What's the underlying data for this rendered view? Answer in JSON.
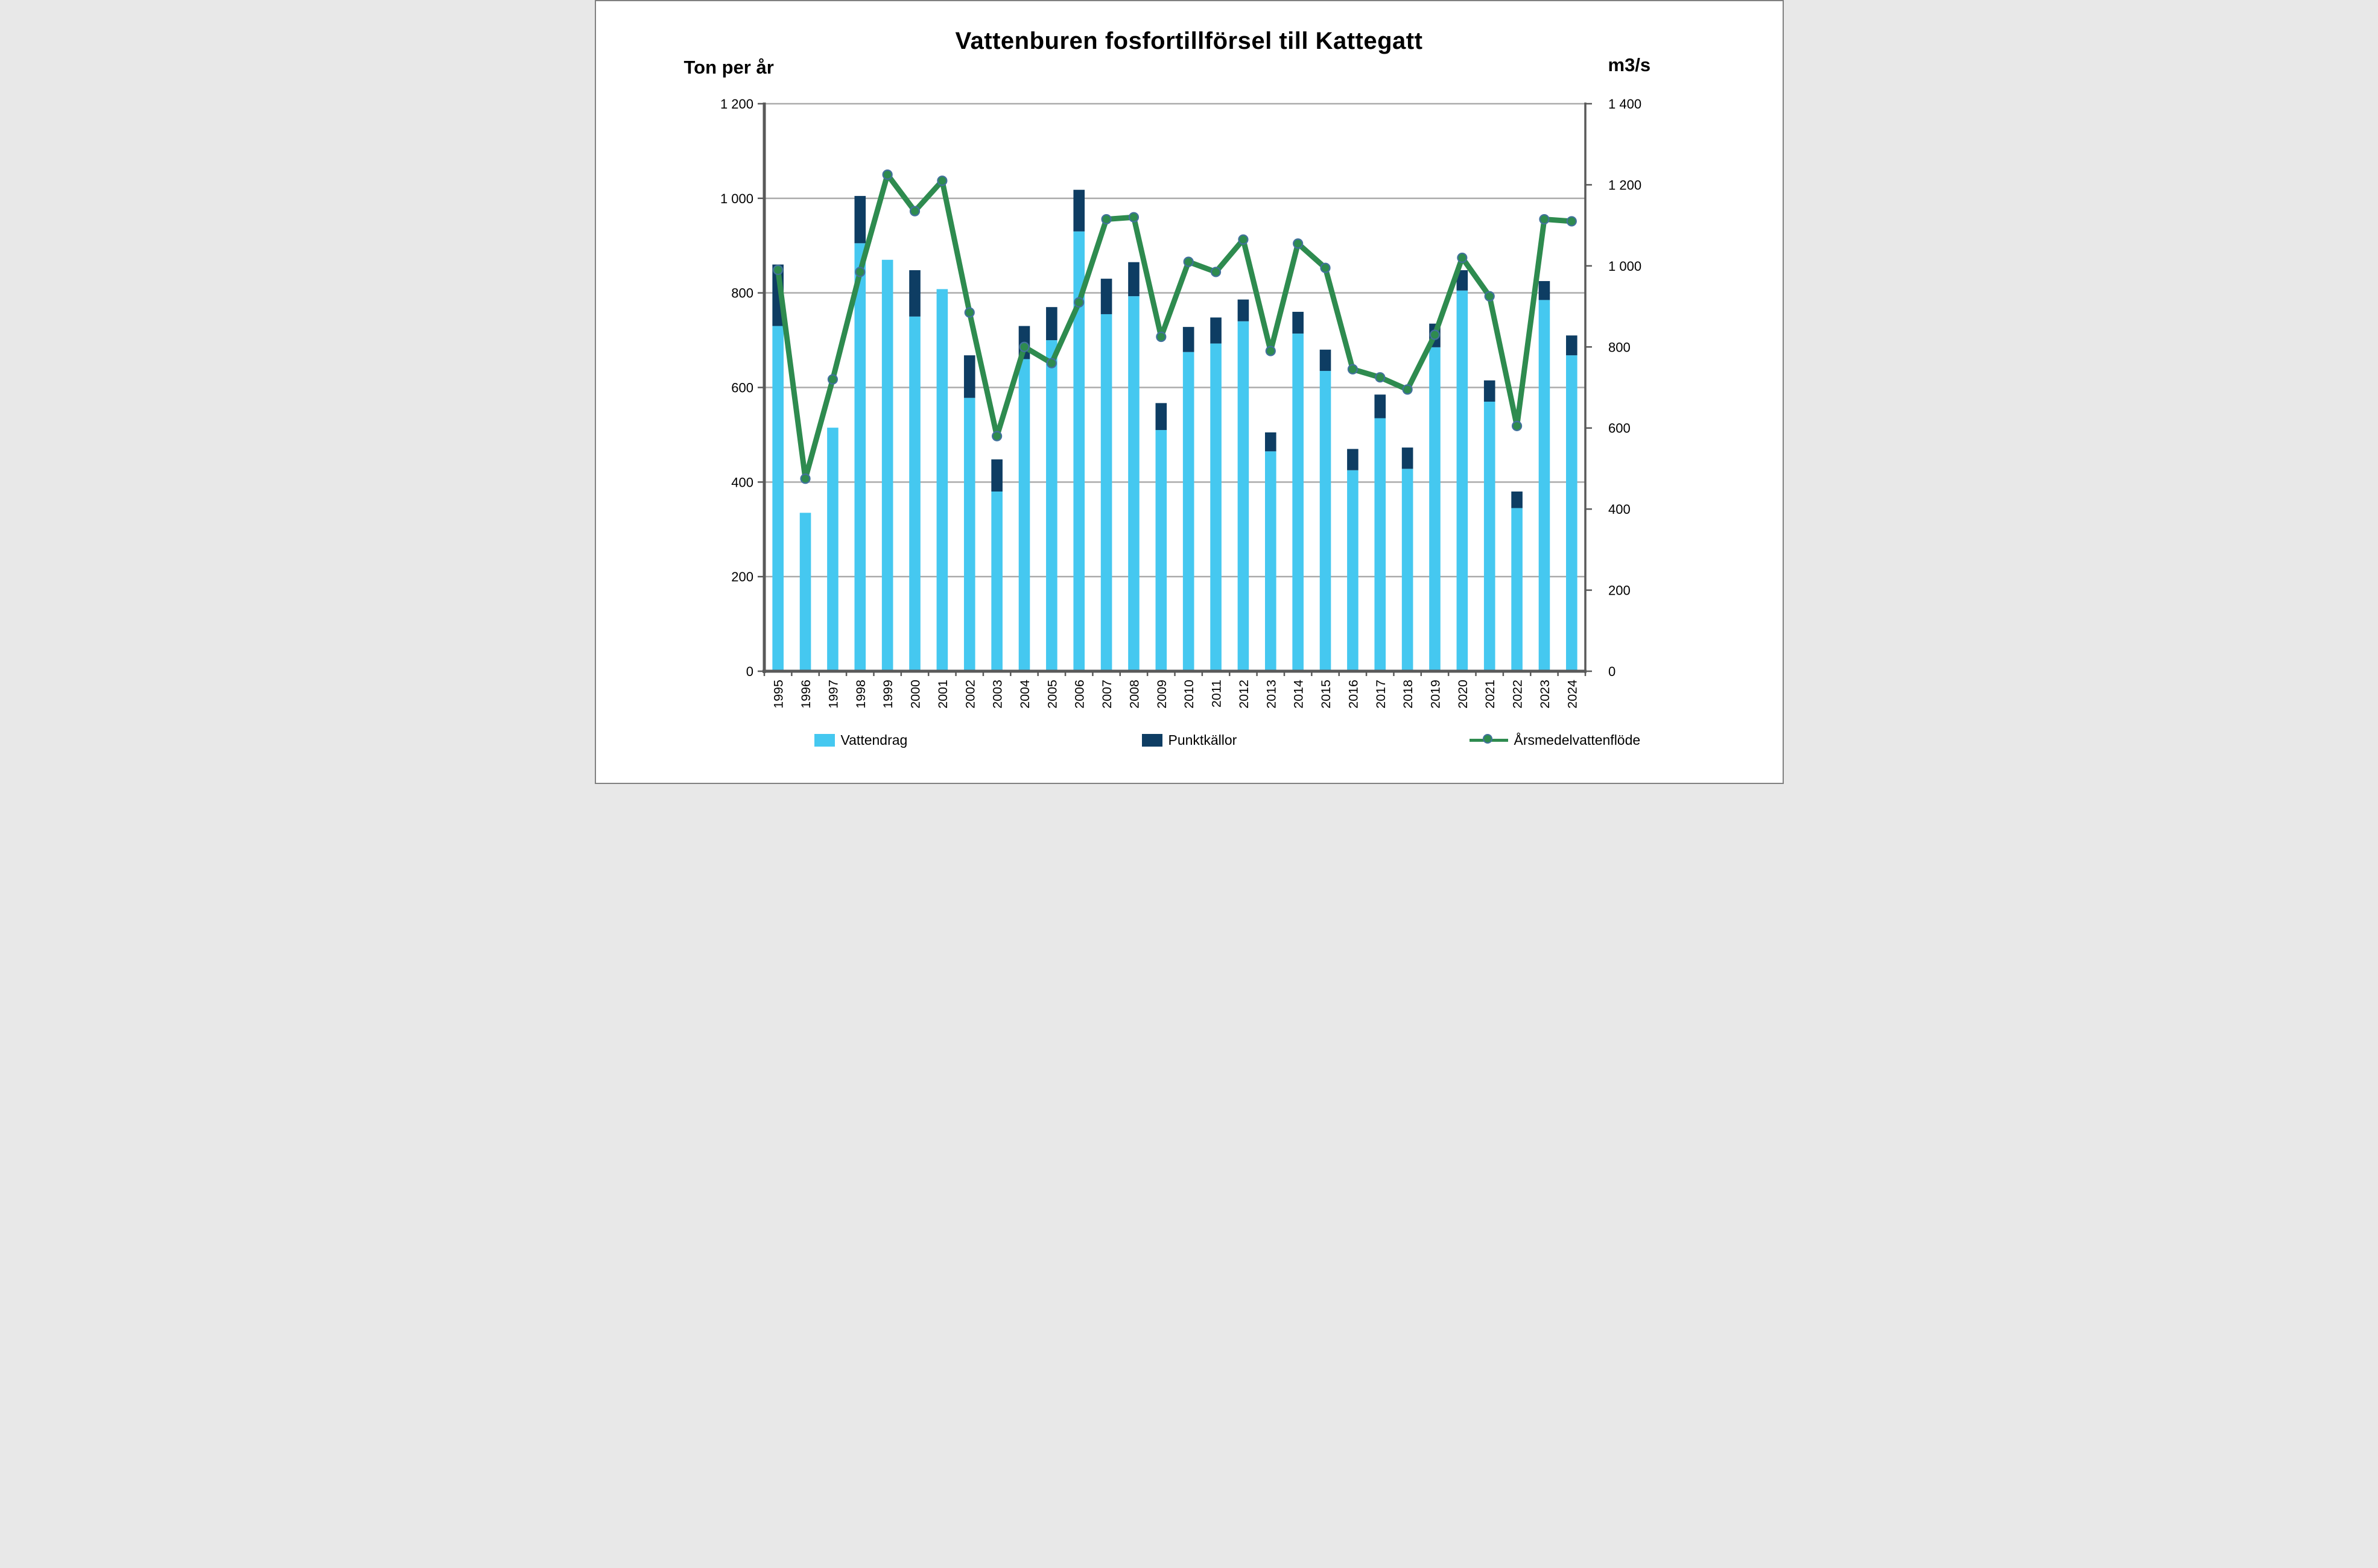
{
  "title": "Vattenburen fosfortillförsel till Kattegatt",
  "left_axis": {
    "label": "Ton per år",
    "min": 0,
    "max": 1200,
    "step": 200,
    "tick_labels": [
      "0",
      "200",
      "400",
      "600",
      "800",
      "1 000",
      "1 200"
    ]
  },
  "right_axis": {
    "label": "m3/s",
    "min": 0,
    "max": 1400,
    "step": 200,
    "tick_labels": [
      "0",
      "200",
      "400",
      "600",
      "800",
      "1 000",
      "1 200",
      "1 400"
    ]
  },
  "colors": {
    "vattendrag": "#45C8F0",
    "punktkallor": "#0E3D63",
    "flode_line": "#2E8B4F",
    "marker_ring": "#41719C",
    "gridline": "#ABABAB",
    "axis": "#595959",
    "text": "#000000",
    "background": "#FFFFFF"
  },
  "legend": {
    "items": [
      {
        "label": "Vattendrag",
        "key": "bar",
        "color": "#45C8F0"
      },
      {
        "label": "Punktkällor",
        "key": "bar",
        "color": "#0E3D63"
      },
      {
        "label": "Årsmedelvattenflöde",
        "key": "line",
        "color": "#2E8B4F",
        "ring": "#41719C"
      }
    ]
  },
  "chart_data": {
    "type": "bar",
    "subtype": "stacked-bars-with-secondary-line",
    "title": "Vattenburen fosfortillförsel till Kattegatt",
    "xlabel": "",
    "ylabel_left": "Ton per år",
    "ylabel_right": "m3/s",
    "ylim_left": [
      0,
      1200
    ],
    "ylim_right": [
      0,
      1400
    ],
    "grid": "horizontal",
    "legend_position": "bottom",
    "categories": [
      "1995",
      "1996",
      "1997",
      "1998",
      "1999",
      "2000",
      "2001",
      "2002",
      "2003",
      "2004",
      "2005",
      "2006",
      "2007",
      "2008",
      "2009",
      "2010",
      "2011",
      "2012",
      "2013",
      "2014",
      "2015",
      "2016",
      "2017",
      "2018",
      "2019",
      "2020",
      "2021",
      "2022",
      "2023",
      "2024"
    ],
    "series": [
      {
        "name": "Vattendrag",
        "type": "bar",
        "stack": "tons",
        "axis": "left",
        "color": "#45C8F0",
        "values": [
          730,
          335,
          515,
          905,
          870,
          750,
          808,
          578,
          380,
          660,
          700,
          930,
          755,
          793,
          510,
          675,
          693,
          740,
          465,
          714,
          635,
          425,
          535,
          428,
          685,
          805,
          570,
          345,
          785,
          668
        ]
      },
      {
        "name": "Punktkällor",
        "type": "bar",
        "stack": "tons",
        "axis": "left",
        "color": "#0E3D63",
        "values": [
          130,
          0,
          0,
          100,
          0,
          98,
          0,
          90,
          68,
          70,
          70,
          88,
          75,
          72,
          57,
          53,
          55,
          46,
          40,
          46,
          45,
          45,
          50,
          45,
          50,
          43,
          45,
          35,
          40,
          42
        ]
      },
      {
        "name": "Årsmedelvattenflöde",
        "type": "line",
        "axis": "right",
        "color": "#2E8B4F",
        "marker": "circle",
        "marker_ring": "#41719C",
        "values": [
          990,
          475,
          720,
          985,
          1225,
          1135,
          1210,
          885,
          580,
          800,
          760,
          910,
          1115,
          1120,
          825,
          1010,
          985,
          1065,
          790,
          1055,
          995,
          745,
          725,
          695,
          830,
          1020,
          925,
          605,
          1115,
          1110
        ]
      }
    ]
  }
}
